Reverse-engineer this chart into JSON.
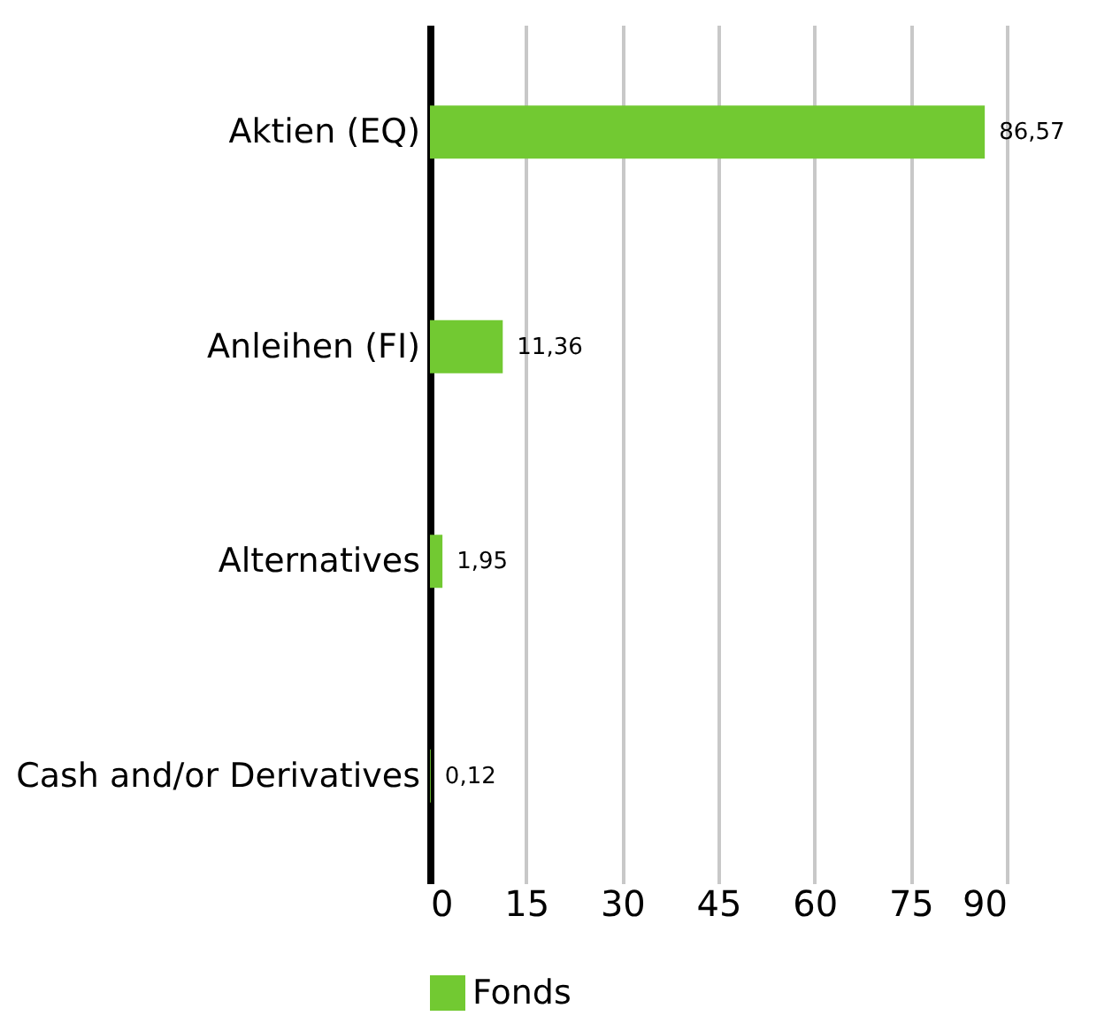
{
  "chart_data": {
    "type": "bar",
    "orientation": "horizontal",
    "categories": [
      "Aktien (EQ)",
      "Anleihen (FI)",
      "Alternatives",
      "Cash and/or Derivatives"
    ],
    "series": [
      {
        "name": "Fonds",
        "color": "#72c932",
        "values": [
          86.57,
          11.36,
          1.95,
          0.12
        ],
        "value_labels": [
          "86,57",
          "11,36",
          "1,95",
          "0,12"
        ]
      }
    ],
    "xlim": [
      0,
      90
    ],
    "xticks": [
      0,
      15,
      30,
      45,
      60,
      75,
      90
    ],
    "grid": "x",
    "legend": "bottom"
  }
}
